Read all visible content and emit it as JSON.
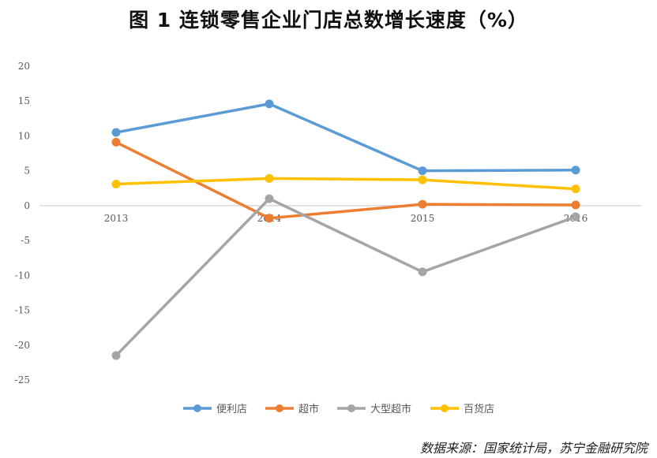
{
  "title": "图 1  连锁零售企业门店总数增长速度（%）",
  "source": "数据来源：国家统计局，苏宁金融研究院",
  "chart_data": {
    "type": "line",
    "title": "图 1  连锁零售企业门店总数增长速度（%）",
    "categories": [
      "2013",
      "2014",
      "2015",
      "2016"
    ],
    "yticks": [
      "20",
      "15",
      "10",
      "5",
      "0",
      "-5",
      "-10",
      "-15",
      "-20",
      "-25"
    ],
    "ylim": [
      -25,
      20
    ],
    "grid": false,
    "legend_position": "bottom",
    "series": [
      {
        "name": "便利店",
        "color": "#5B9BD5",
        "values": [
          10.5,
          14.6,
          5.0,
          5.1
        ]
      },
      {
        "name": "超市",
        "color": "#ED7D31",
        "values": [
          9.1,
          -1.8,
          0.2,
          0.1
        ]
      },
      {
        "name": "大型超市",
        "color": "#A5A5A5",
        "values": [
          -21.5,
          1.0,
          -9.5,
          -1.6
        ]
      },
      {
        "name": "百货店",
        "color": "#FFC000",
        "values": [
          3.1,
          3.9,
          3.7,
          2.4
        ]
      }
    ]
  }
}
